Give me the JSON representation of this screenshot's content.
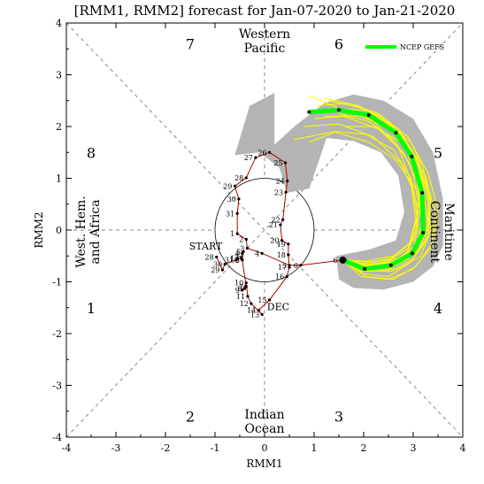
{
  "chart_data": {
    "type": "line",
    "title": "[RMM1, RMM2] forecast for Jan-07-2020 to Jan-21-2020",
    "xlabel": "RMM1",
    "ylabel": "RMM2",
    "xlim": [
      -4,
      4
    ],
    "ylim": [
      -4,
      4
    ],
    "xticks": [
      "-4",
      "-3",
      "-2",
      "-1",
      "0",
      "1",
      "2",
      "3",
      "4"
    ],
    "yticks": [
      "-4",
      "-3",
      "-2",
      "-1",
      "0",
      "1",
      "2",
      "3",
      "4"
    ],
    "unit_circle_radius": 1,
    "phase_labels": [
      {
        "text": "7",
        "x": -1.5,
        "y": 3.6
      },
      {
        "text": "6",
        "x": 1.5,
        "y": 3.6
      },
      {
        "text": "5",
        "x": 3.5,
        "y": 1.5
      },
      {
        "text": "4",
        "x": 3.5,
        "y": -1.5
      },
      {
        "text": "3",
        "x": 1.5,
        "y": -3.6
      },
      {
        "text": "2",
        "x": -1.5,
        "y": -3.6
      },
      {
        "text": "1",
        "x": -3.5,
        "y": -1.5
      },
      {
        "text": "8",
        "x": -3.5,
        "y": 1.5
      }
    ],
    "regions": {
      "top": [
        "Western",
        "Pacific"
      ],
      "bottom": [
        "Indian",
        "Ocean"
      ],
      "left": [
        "West. Hem.",
        "and Africa"
      ],
      "right": [
        "Maritime",
        "Continent"
      ]
    },
    "annotations": {
      "start": "START",
      "month": "DEC"
    },
    "observed": {
      "color": "#b00000",
      "points": [
        {
          "d": "28",
          "x": -0.97,
          "y": -0.52
        },
        {
          "d": "29",
          "x": -0.85,
          "y": -0.77
        },
        {
          "d": "30",
          "x": -0.8,
          "y": -0.66
        },
        {
          "d": "31",
          "x": -0.57,
          "y": -0.57
        },
        {
          "d": "1",
          "x": -0.55,
          "y": -0.55
        },
        {
          "d": "2",
          "x": -0.45,
          "y": -0.57
        },
        {
          "d": "3",
          "x": -0.47,
          "y": -0.53
        },
        {
          "d": "4",
          "x": -0.45,
          "y": -0.45
        },
        {
          "d": "5",
          "x": -0.43,
          "y": -0.42
        },
        {
          "d": "6",
          "x": -0.45,
          "y": -0.58
        },
        {
          "d": "7",
          "x": -0.37,
          "y": -1.09
        },
        {
          "d": "8",
          "x": -0.4,
          "y": -1.13
        },
        {
          "d": "9",
          "x": -0.45,
          "y": -1.16
        },
        {
          "d": "10",
          "x": -0.37,
          "y": -1.02
        },
        {
          "d": "11",
          "x": -0.34,
          "y": -1.28
        },
        {
          "d": "12",
          "x": -0.27,
          "y": -1.42
        },
        {
          "d": "13",
          "x": -0.05,
          "y": -1.63
        },
        {
          "d": "14",
          "x": -0.12,
          "y": -1.55
        },
        {
          "d": "15",
          "x": 0.1,
          "y": -1.35
        },
        {
          "d": "16",
          "x": 0.45,
          "y": -0.9
        },
        {
          "d": "17",
          "x": 0.5,
          "y": -0.72
        },
        {
          "d": "18",
          "x": 0.48,
          "y": -0.48
        },
        {
          "d": "19",
          "x": 0.48,
          "y": -0.27
        },
        {
          "d": "20",
          "x": 0.35,
          "y": -0.2
        },
        {
          "d": "21",
          "x": 0.32,
          "y": 0.1
        },
        {
          "d": "22",
          "x": 0.37,
          "y": 0.2
        },
        {
          "d": "23",
          "x": 0.43,
          "y": 0.73
        },
        {
          "d": "24",
          "x": 0.46,
          "y": 0.95
        },
        {
          "d": "25",
          "x": 0.42,
          "y": 1.3
        },
        {
          "d": "26",
          "x": 0.1,
          "y": 1.5
        },
        {
          "d": "27",
          "x": -0.18,
          "y": 1.4
        },
        {
          "d": "28",
          "x": -0.37,
          "y": 1.01
        },
        {
          "d": "29",
          "x": -0.6,
          "y": 0.85
        },
        {
          "d": "30",
          "x": -0.52,
          "y": 0.6
        },
        {
          "d": "31",
          "x": -0.55,
          "y": 0.32
        },
        {
          "d": "1",
          "x": -0.55,
          "y": -0.07
        },
        {
          "d": "2",
          "x": -0.37,
          "y": -0.18
        },
        {
          "d": "3",
          "x": -0.35,
          "y": -0.35
        },
        {
          "d": "4",
          "x": -0.05,
          "y": -0.45
        },
        {
          "d": "5",
          "x": 0.5,
          "y": -0.68
        },
        {
          "d": "6",
          "x": 0.73,
          "y": -0.68
        }
      ]
    },
    "forecast": {
      "name": "NCEP GEFS",
      "color": "#00ff00",
      "ensemble_color": "#ffff00",
      "spread_color": "#b4b4b4",
      "start": {
        "x": 1.58,
        "y": -0.58
      },
      "points": [
        {
          "x": 2.02,
          "y": -0.75
        },
        {
          "x": 2.55,
          "y": -0.68
        },
        {
          "x": 2.98,
          "y": -0.45
        },
        {
          "x": 3.2,
          "y": -0.05
        },
        {
          "x": 3.18,
          "y": 0.72
        },
        {
          "x": 2.97,
          "y": 1.42
        },
        {
          "x": 2.65,
          "y": 1.88
        },
        {
          "x": 2.1,
          "y": 2.22
        },
        {
          "x": 1.5,
          "y": 2.32
        },
        {
          "x": 0.9,
          "y": 2.28
        }
      ],
      "spread": [
        [
          0.2,
          1.65
        ],
        [
          0.6,
          2.0
        ],
        [
          1.2,
          2.45
        ],
        [
          1.8,
          2.62
        ],
        [
          2.4,
          2.5
        ],
        [
          3.0,
          2.15
        ],
        [
          3.4,
          1.5
        ],
        [
          3.6,
          0.6
        ],
        [
          3.6,
          -0.3
        ],
        [
          3.4,
          -0.7
        ],
        [
          3.0,
          -1.0
        ],
        [
          2.4,
          -1.15
        ],
        [
          1.8,
          -1.12
        ],
        [
          1.5,
          -0.95
        ],
        [
          1.45,
          -0.5
        ],
        [
          2.1,
          -0.38
        ],
        [
          2.65,
          -0.2
        ],
        [
          2.82,
          0.35
        ],
        [
          2.7,
          1.05
        ],
        [
          2.35,
          1.5
        ],
        [
          1.8,
          1.72
        ],
        [
          1.25,
          1.78
        ],
        [
          1.1,
          1.35
        ],
        [
          0.9,
          0.8
        ],
        [
          0.45,
          0.72
        ],
        [
          0.3,
          1.2
        ],
        [
          -0.1,
          1.5
        ],
        [
          -0.6,
          1.45
        ],
        [
          -0.3,
          2.4
        ],
        [
          0.2,
          2.65
        ]
      ],
      "members": [
        [
          [
            1.58,
            -0.58
          ],
          [
            2.1,
            -0.62
          ],
          [
            2.7,
            -0.55
          ],
          [
            3.05,
            -0.3
          ],
          [
            3.2,
            0.2
          ],
          [
            3.1,
            0.9
          ],
          [
            2.8,
            1.5
          ],
          [
            2.3,
            1.95
          ],
          [
            1.6,
            2.2
          ],
          [
            1.0,
            2.15
          ]
        ],
        [
          [
            1.58,
            -0.58
          ],
          [
            2.0,
            -0.85
          ],
          [
            2.5,
            -0.9
          ],
          [
            2.95,
            -0.62
          ],
          [
            3.3,
            -0.15
          ],
          [
            3.35,
            0.6
          ],
          [
            3.1,
            1.35
          ],
          [
            2.7,
            1.95
          ],
          [
            2.0,
            2.35
          ],
          [
            1.3,
            2.5
          ]
        ],
        [
          [
            1.58,
            -0.58
          ],
          [
            2.05,
            -0.7
          ],
          [
            2.6,
            -0.6
          ],
          [
            3.0,
            -0.38
          ],
          [
            3.1,
            0.1
          ],
          [
            3.0,
            0.75
          ],
          [
            2.75,
            1.3
          ],
          [
            2.2,
            1.8
          ],
          [
            1.5,
            2.05
          ],
          [
            0.8,
            2.0
          ]
        ],
        [
          [
            1.58,
            -0.58
          ],
          [
            1.95,
            -0.8
          ],
          [
            2.45,
            -0.78
          ],
          [
            2.9,
            -0.55
          ],
          [
            3.25,
            -0.1
          ],
          [
            3.35,
            0.5
          ],
          [
            3.2,
            1.2
          ],
          [
            2.9,
            1.8
          ],
          [
            2.3,
            2.25
          ],
          [
            1.7,
            2.45
          ]
        ],
        [
          [
            1.58,
            -0.58
          ],
          [
            2.1,
            -0.72
          ],
          [
            2.65,
            -0.65
          ],
          [
            3.1,
            -0.4
          ],
          [
            3.3,
            0.05
          ],
          [
            3.2,
            0.85
          ],
          [
            2.95,
            1.55
          ],
          [
            2.55,
            2.05
          ],
          [
            1.9,
            2.4
          ],
          [
            1.2,
            2.55
          ]
        ],
        [
          [
            1.58,
            -0.58
          ],
          [
            2.0,
            -0.68
          ],
          [
            2.5,
            -0.6
          ],
          [
            2.9,
            -0.35
          ],
          [
            3.05,
            0.2
          ],
          [
            2.95,
            0.95
          ],
          [
            2.7,
            1.6
          ],
          [
            2.2,
            2.1
          ],
          [
            1.5,
            2.35
          ],
          [
            0.9,
            2.6
          ]
        ],
        [
          [
            1.58,
            -0.58
          ],
          [
            2.05,
            -0.9
          ],
          [
            2.6,
            -0.95
          ],
          [
            3.05,
            -0.7
          ],
          [
            3.4,
            -0.25
          ],
          [
            3.5,
            0.4
          ],
          [
            3.3,
            1.1
          ],
          [
            2.95,
            1.7
          ],
          [
            2.45,
            2.1
          ],
          [
            1.8,
            2.3
          ]
        ],
        [
          [
            1.58,
            -0.58
          ],
          [
            2.0,
            -0.65
          ],
          [
            2.55,
            -0.55
          ],
          [
            2.95,
            -0.25
          ],
          [
            3.1,
            0.35
          ],
          [
            2.95,
            1.0
          ],
          [
            2.6,
            1.55
          ],
          [
            2.05,
            1.85
          ],
          [
            1.45,
            1.9
          ],
          [
            0.9,
            1.7
          ]
        ],
        [
          [
            1.58,
            -0.58
          ],
          [
            2.1,
            -0.8
          ],
          [
            2.7,
            -0.75
          ],
          [
            3.15,
            -0.5
          ],
          [
            3.35,
            0.0
          ],
          [
            3.3,
            0.7
          ],
          [
            3.05,
            1.4
          ],
          [
            2.6,
            1.9
          ],
          [
            2.0,
            2.2
          ],
          [
            1.2,
            2.2
          ]
        ],
        [
          [
            1.58,
            -0.58
          ],
          [
            2.0,
            -0.75
          ],
          [
            2.45,
            -0.7
          ],
          [
            2.85,
            -0.48
          ],
          [
            3.05,
            -0.05
          ],
          [
            3.1,
            0.6
          ],
          [
            2.95,
            1.25
          ],
          [
            2.6,
            1.75
          ],
          [
            2.1,
            2.1
          ],
          [
            1.5,
            2.25
          ]
        ],
        [
          [
            1.58,
            -0.58
          ],
          [
            2.05,
            -0.6
          ],
          [
            2.6,
            -0.5
          ],
          [
            3.0,
            -0.2
          ],
          [
            3.15,
            0.4
          ],
          [
            3.05,
            1.1
          ],
          [
            2.8,
            1.7
          ],
          [
            2.35,
            2.2
          ],
          [
            1.7,
            2.45
          ],
          [
            1.05,
            2.4
          ]
        ],
        [
          [
            1.58,
            -0.58
          ],
          [
            1.95,
            -0.9
          ],
          [
            2.5,
            -0.95
          ],
          [
            3.0,
            -0.75
          ],
          [
            3.35,
            -0.35
          ],
          [
            3.45,
            0.3
          ],
          [
            3.25,
            1.05
          ],
          [
            2.85,
            1.65
          ],
          [
            2.2,
            2.0
          ],
          [
            1.6,
            2.0
          ]
        ],
        [
          [
            1.58,
            -0.58
          ],
          [
            2.1,
            -0.68
          ],
          [
            2.65,
            -0.62
          ],
          [
            3.05,
            -0.35
          ],
          [
            3.2,
            0.1
          ],
          [
            3.05,
            0.8
          ],
          [
            2.65,
            1.35
          ],
          [
            2.1,
            1.7
          ],
          [
            1.4,
            1.9
          ],
          [
            0.6,
            1.75
          ]
        ],
        [
          [
            1.58,
            -0.58
          ],
          [
            2.0,
            -0.78
          ],
          [
            2.55,
            -0.8
          ],
          [
            3.0,
            -0.55
          ],
          [
            3.3,
            -0.1
          ],
          [
            3.3,
            0.55
          ],
          [
            3.1,
            1.25
          ],
          [
            2.75,
            1.85
          ],
          [
            2.15,
            2.3
          ],
          [
            1.4,
            2.35
          ]
        ]
      ]
    },
    "legend": {
      "position": "top-right",
      "entries": [
        "NCEP GEFS"
      ]
    }
  }
}
